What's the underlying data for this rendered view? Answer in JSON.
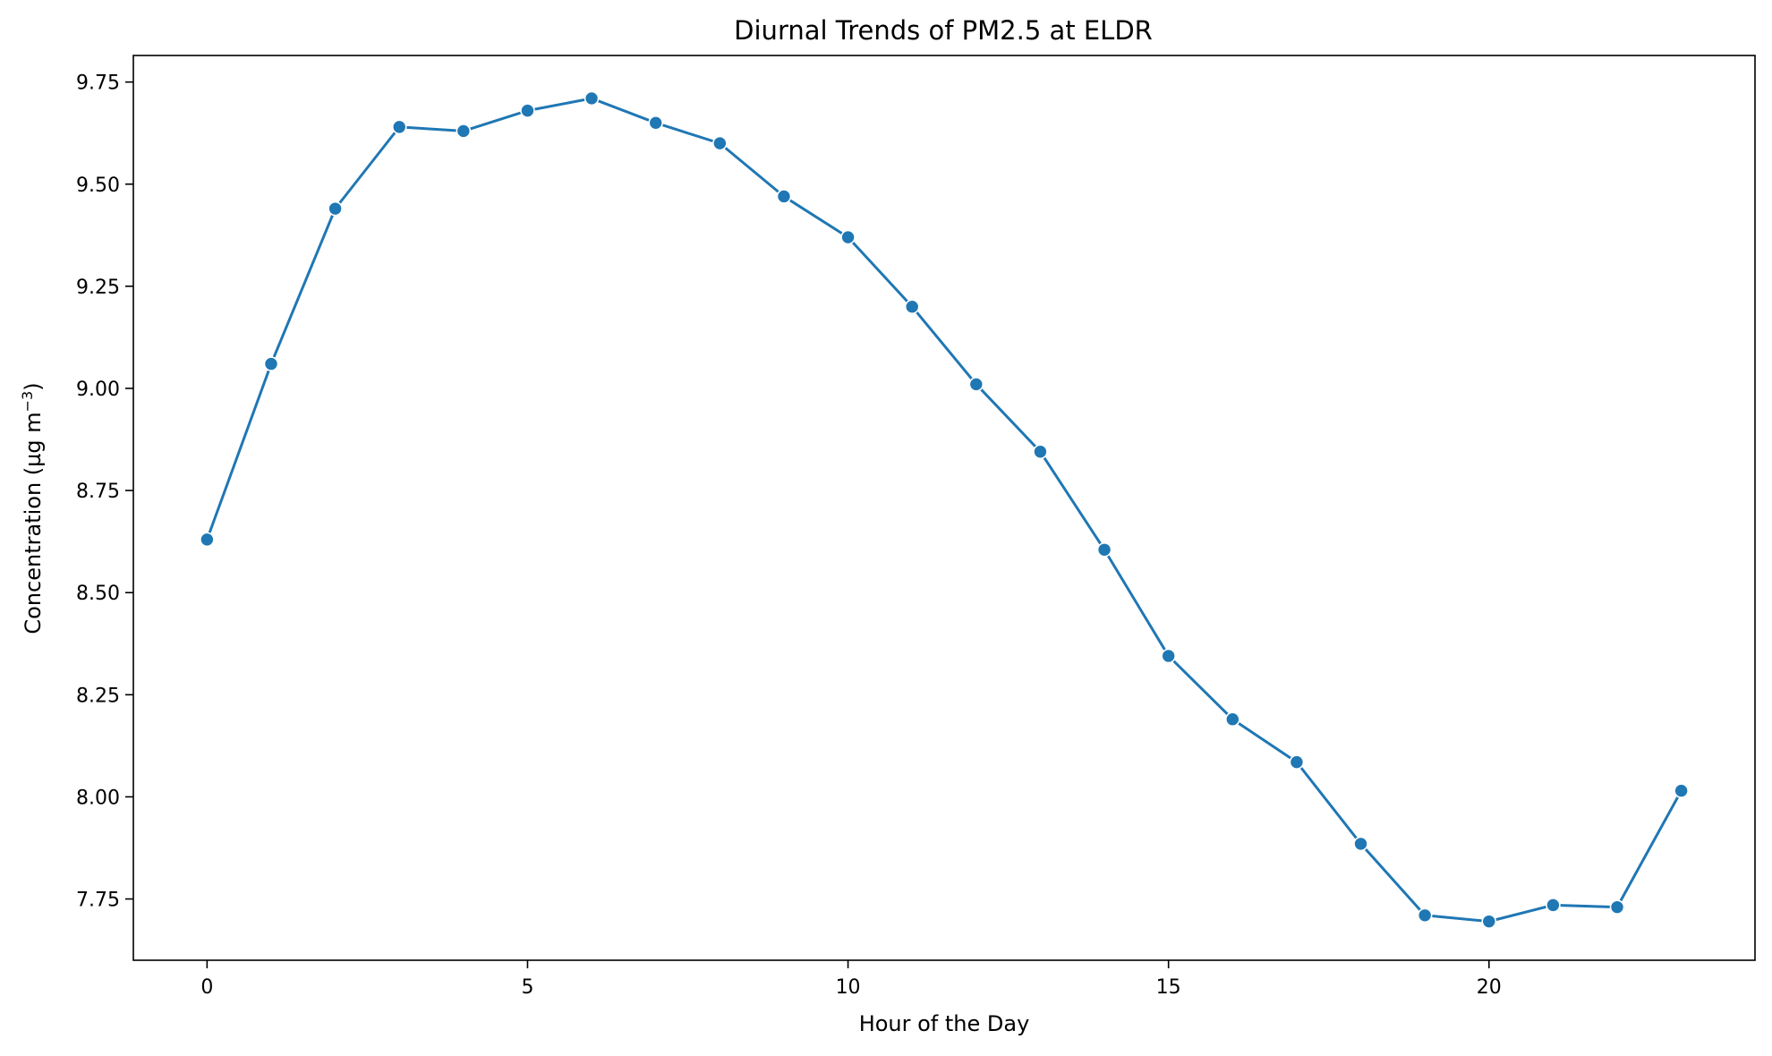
{
  "chart_data": {
    "type": "line",
    "title": "Diurnal Trends of PM2.5 at ELDR",
    "xlabel": "Hour of the Day",
    "ylabel_text": "Concentration (µg m",
    "ylabel_sup": "−3",
    "ylabel_close": ")",
    "xlim": [
      -1.15,
      24.15
    ],
    "ylim": [
      7.6,
      9.815
    ],
    "xticks": [
      0,
      5,
      10,
      15,
      20
    ],
    "xtick_labels": [
      "0",
      "5",
      "10",
      "15",
      "20"
    ],
    "yticks": [
      7.75,
      8.0,
      8.25,
      8.5,
      8.75,
      9.0,
      9.25,
      9.5,
      9.75
    ],
    "ytick_labels": [
      "7.75",
      "8.00",
      "8.25",
      "8.50",
      "8.75",
      "9.00",
      "9.25",
      "9.50",
      "9.75"
    ],
    "grid": false,
    "legend": "none",
    "color": "#1f77b4",
    "x": [
      0,
      1,
      2,
      3,
      4,
      5,
      6,
      7,
      8,
      9,
      10,
      11,
      12,
      13,
      14,
      15,
      16,
      17,
      18,
      19,
      20,
      21,
      22,
      23
    ],
    "values": [
      8.63,
      9.06,
      9.44,
      9.64,
      9.63,
      9.68,
      9.71,
      9.65,
      9.6,
      9.47,
      9.37,
      9.2,
      9.01,
      8.845,
      8.605,
      8.345,
      8.19,
      8.085,
      7.885,
      7.71,
      7.695,
      7.735,
      7.73,
      8.015
    ]
  }
}
